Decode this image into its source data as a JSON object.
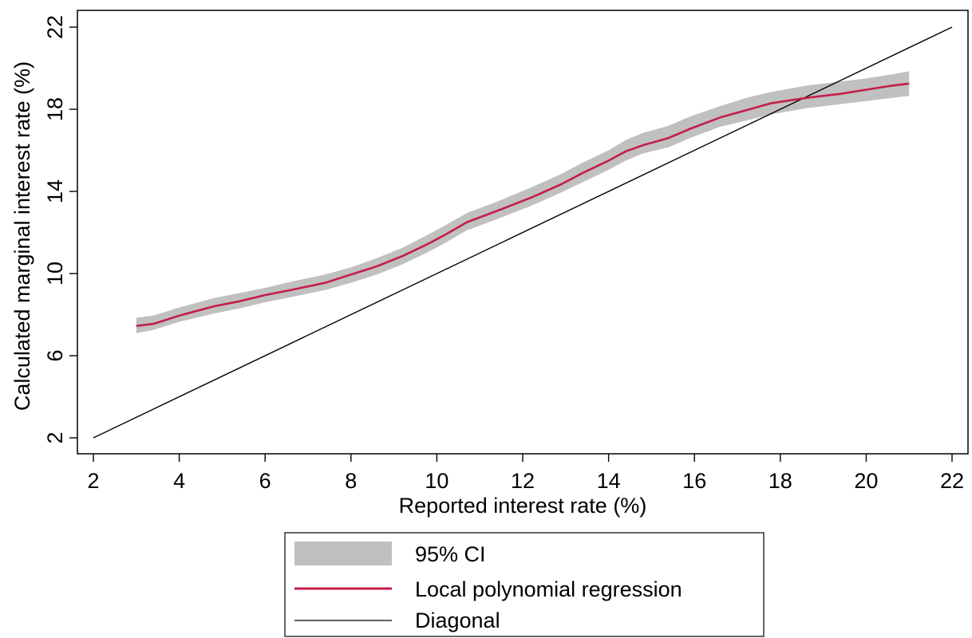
{
  "chart_data": {
    "type": "line",
    "title": "",
    "xlabel": "Reported interest rate (%)",
    "ylabel": "Calculated marginal interest rate (%)",
    "xlim": [
      2,
      22
    ],
    "ylim": [
      2,
      22
    ],
    "xticks": [
      "2",
      "4",
      "6",
      "8",
      "10",
      "12",
      "14",
      "16",
      "18",
      "20",
      "22"
    ],
    "yticks": [
      "2",
      "6",
      "10",
      "14",
      "18",
      "22"
    ],
    "grid": false,
    "legend_position": "bottom",
    "series": [
      {
        "name": "95% CI",
        "kind": "band",
        "color": "#c0c0c0",
        "x": [
          3.0,
          3.4,
          4.0,
          4.8,
          5.4,
          6.0,
          6.6,
          7.4,
          8.0,
          8.6,
          9.2,
          9.8,
          10.2,
          10.7,
          11.4,
          12.2,
          12.9,
          13.4,
          14.0,
          14.4,
          14.8,
          15.4,
          15.9,
          16.6,
          17.2,
          17.8,
          18.6,
          19.4,
          20.0,
          20.6,
          21.0
        ],
        "upper": [
          7.85,
          7.95,
          8.35,
          8.8,
          9.05,
          9.3,
          9.6,
          9.95,
          10.3,
          10.75,
          11.25,
          11.9,
          12.35,
          12.95,
          13.5,
          14.2,
          14.85,
          15.4,
          16.0,
          16.5,
          16.85,
          17.2,
          17.65,
          18.15,
          18.55,
          18.85,
          19.15,
          19.35,
          19.5,
          19.7,
          19.85
        ],
        "lower": [
          7.1,
          7.25,
          7.65,
          8.05,
          8.3,
          8.6,
          8.85,
          9.2,
          9.55,
          9.95,
          10.45,
          11.05,
          11.5,
          12.1,
          12.65,
          13.3,
          13.95,
          14.45,
          15.05,
          15.5,
          15.85,
          16.15,
          16.6,
          17.15,
          17.45,
          17.75,
          18.05,
          18.25,
          18.4,
          18.55,
          18.65
        ]
      },
      {
        "name": "Local polynomial regression",
        "kind": "line",
        "color": "#c41e4a",
        "x": [
          3.0,
          3.4,
          4.0,
          4.8,
          5.4,
          6.0,
          6.6,
          7.4,
          8.0,
          8.6,
          9.2,
          9.8,
          10.2,
          10.7,
          11.4,
          12.2,
          12.9,
          13.4,
          14.0,
          14.4,
          14.8,
          15.4,
          15.9,
          16.6,
          17.2,
          17.8,
          18.6,
          19.4,
          20.0,
          20.6,
          21.0
        ],
        "y": [
          7.45,
          7.55,
          7.95,
          8.4,
          8.65,
          8.95,
          9.2,
          9.55,
          9.95,
          10.35,
          10.85,
          11.45,
          11.9,
          12.5,
          13.05,
          13.7,
          14.35,
          14.9,
          15.5,
          15.95,
          16.25,
          16.6,
          17.05,
          17.6,
          17.95,
          18.3,
          18.55,
          18.75,
          18.95,
          19.15,
          19.25
        ]
      },
      {
        "name": "Diagonal",
        "kind": "line",
        "color": "#000000",
        "x": [
          2,
          22
        ],
        "y": [
          2,
          22
        ]
      }
    ]
  }
}
